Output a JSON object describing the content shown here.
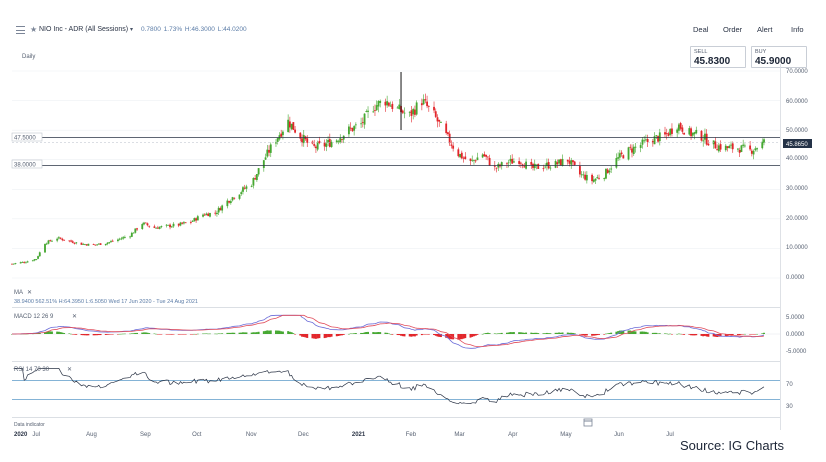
{
  "header": {
    "instrument": "NIO Inc - ADR (All Sessions)",
    "quote": "0.7800  1.73%  H:46.3000  L:44.0200",
    "links": [
      "Deal",
      "Order",
      "Alert",
      "Info"
    ]
  },
  "chart_meta": {
    "period": "Daily"
  },
  "prices": {
    "sell_label": "SELL",
    "sell_value": "45.8300",
    "buy_label": "BUY",
    "buy_value": "45.9000",
    "last_badge": "45.8650",
    "hline_upper": "47.5000",
    "hline_lower": "38.0000"
  },
  "ma": {
    "label": "MA",
    "close_icon": "close-icon",
    "readout": "38.9400   562.51%   H:64.3950   L:6.5050   Wed 17 Jun 2020 - Tue 24 Aug 2021"
  },
  "macd": {
    "label": "MACD  12  26  9",
    "close_icon": "close-icon"
  },
  "rsi": {
    "label": "RSI  14  70  30",
    "close_icon": "close-icon",
    "upper": "70",
    "lower": "30"
  },
  "footer": {
    "data_indicator": "Data indicator",
    "calendar_icon": "calendar-icon",
    "source": "Source: IG Charts"
  },
  "colors": {
    "up": "#46a832",
    "down": "#e2262b",
    "macd_line": "#6b6cd8",
    "signal_line": "#e04b5a",
    "rsi_line": "#2a3345",
    "band": "#5b9ac8"
  },
  "chart_data": {
    "type": "candlestick",
    "price_axis_ticks": [
      "70.0000",
      "60.0000",
      "50.0000",
      "40.0000",
      "30.0000",
      "20.0000",
      "10.0000",
      "0.0000"
    ],
    "ylim": [
      0,
      70
    ],
    "macd_axis_ticks": [
      "5.0000",
      "0.0000",
      "-5.0000"
    ],
    "rsi_axis_ticks": [
      "70",
      "30"
    ],
    "x_tick_labels": [
      "2020",
      "Jul",
      "Aug",
      "Sep",
      "Oct",
      "Nov",
      "Dec",
      "2021",
      "Feb",
      "Mar",
      "Apr",
      "May",
      "Jun",
      "Jul"
    ],
    "price_path": [
      [
        "2020-06-17",
        4.8
      ],
      [
        "2020-06-25",
        5.5
      ],
      [
        "2020-07-01",
        6.5
      ],
      [
        "2020-07-06",
        11.8
      ],
      [
        "2020-07-13",
        13.5
      ],
      [
        "2020-07-20",
        12.5
      ],
      [
        "2020-07-27",
        11.5
      ],
      [
        "2020-08-03",
        11.2
      ],
      [
        "2020-08-10",
        11.8
      ],
      [
        "2020-08-17",
        13.0
      ],
      [
        "2020-08-24",
        14.5
      ],
      [
        "2020-08-31",
        18.5
      ],
      [
        "2020-09-07",
        17.0
      ],
      [
        "2020-09-14",
        17.5
      ],
      [
        "2020-09-21",
        18.0
      ],
      [
        "2020-09-28",
        19.0
      ],
      [
        "2020-10-05",
        21.5
      ],
      [
        "2020-10-12",
        22.0
      ],
      [
        "2020-10-19",
        26.0
      ],
      [
        "2020-10-26",
        29.0
      ],
      [
        "2020-11-02",
        32.0
      ],
      [
        "2020-11-09",
        40.0
      ],
      [
        "2020-11-16",
        47.0
      ],
      [
        "2020-11-23",
        53.0
      ],
      [
        "2020-11-30",
        48.0
      ],
      [
        "2020-12-07",
        44.0
      ],
      [
        "2020-12-14",
        45.0
      ],
      [
        "2020-12-21",
        47.0
      ],
      [
        "2020-12-28",
        50.0
      ],
      [
        "2021-01-04",
        52.0
      ],
      [
        "2021-01-11",
        58.0
      ],
      [
        "2021-01-18",
        60.0
      ],
      [
        "2021-01-25",
        57.0
      ],
      [
        "2021-02-01",
        55.0
      ],
      [
        "2021-02-08",
        60.0
      ],
      [
        "2021-02-15",
        55.0
      ],
      [
        "2021-02-22",
        48.0
      ],
      [
        "2021-03-01",
        42.0
      ],
      [
        "2021-03-08",
        39.0
      ],
      [
        "2021-03-15",
        42.0
      ],
      [
        "2021-03-22",
        37.0
      ],
      [
        "2021-03-29",
        39.0
      ],
      [
        "2021-04-05",
        40.0
      ],
      [
        "2021-04-12",
        37.0
      ],
      [
        "2021-04-19",
        38.0
      ],
      [
        "2021-04-26",
        38.5
      ],
      [
        "2021-05-03",
        40.0
      ],
      [
        "2021-05-10",
        35.0
      ],
      [
        "2021-05-17",
        33.0
      ],
      [
        "2021-05-24",
        35.0
      ],
      [
        "2021-05-31",
        40.0
      ],
      [
        "2021-06-07",
        43.0
      ],
      [
        "2021-06-14",
        45.0
      ],
      [
        "2021-06-21",
        47.0
      ],
      [
        "2021-06-28",
        48.0
      ],
      [
        "2021-07-05",
        52.0
      ],
      [
        "2021-07-12",
        49.0
      ],
      [
        "2021-07-19",
        48.0
      ],
      [
        "2021-07-26",
        45.0
      ],
      [
        "2021-08-02",
        44.0
      ],
      [
        "2021-08-09",
        44.0
      ],
      [
        "2021-08-16",
        43.0
      ],
      [
        "2021-08-24",
        45.9
      ]
    ],
    "series": [
      {
        "name": "MACD",
        "pane": "macd"
      },
      {
        "name": "Signal",
        "pane": "macd"
      },
      {
        "name": "RSI",
        "pane": "rsi"
      }
    ],
    "legend": "none",
    "grid": "horizontal"
  }
}
